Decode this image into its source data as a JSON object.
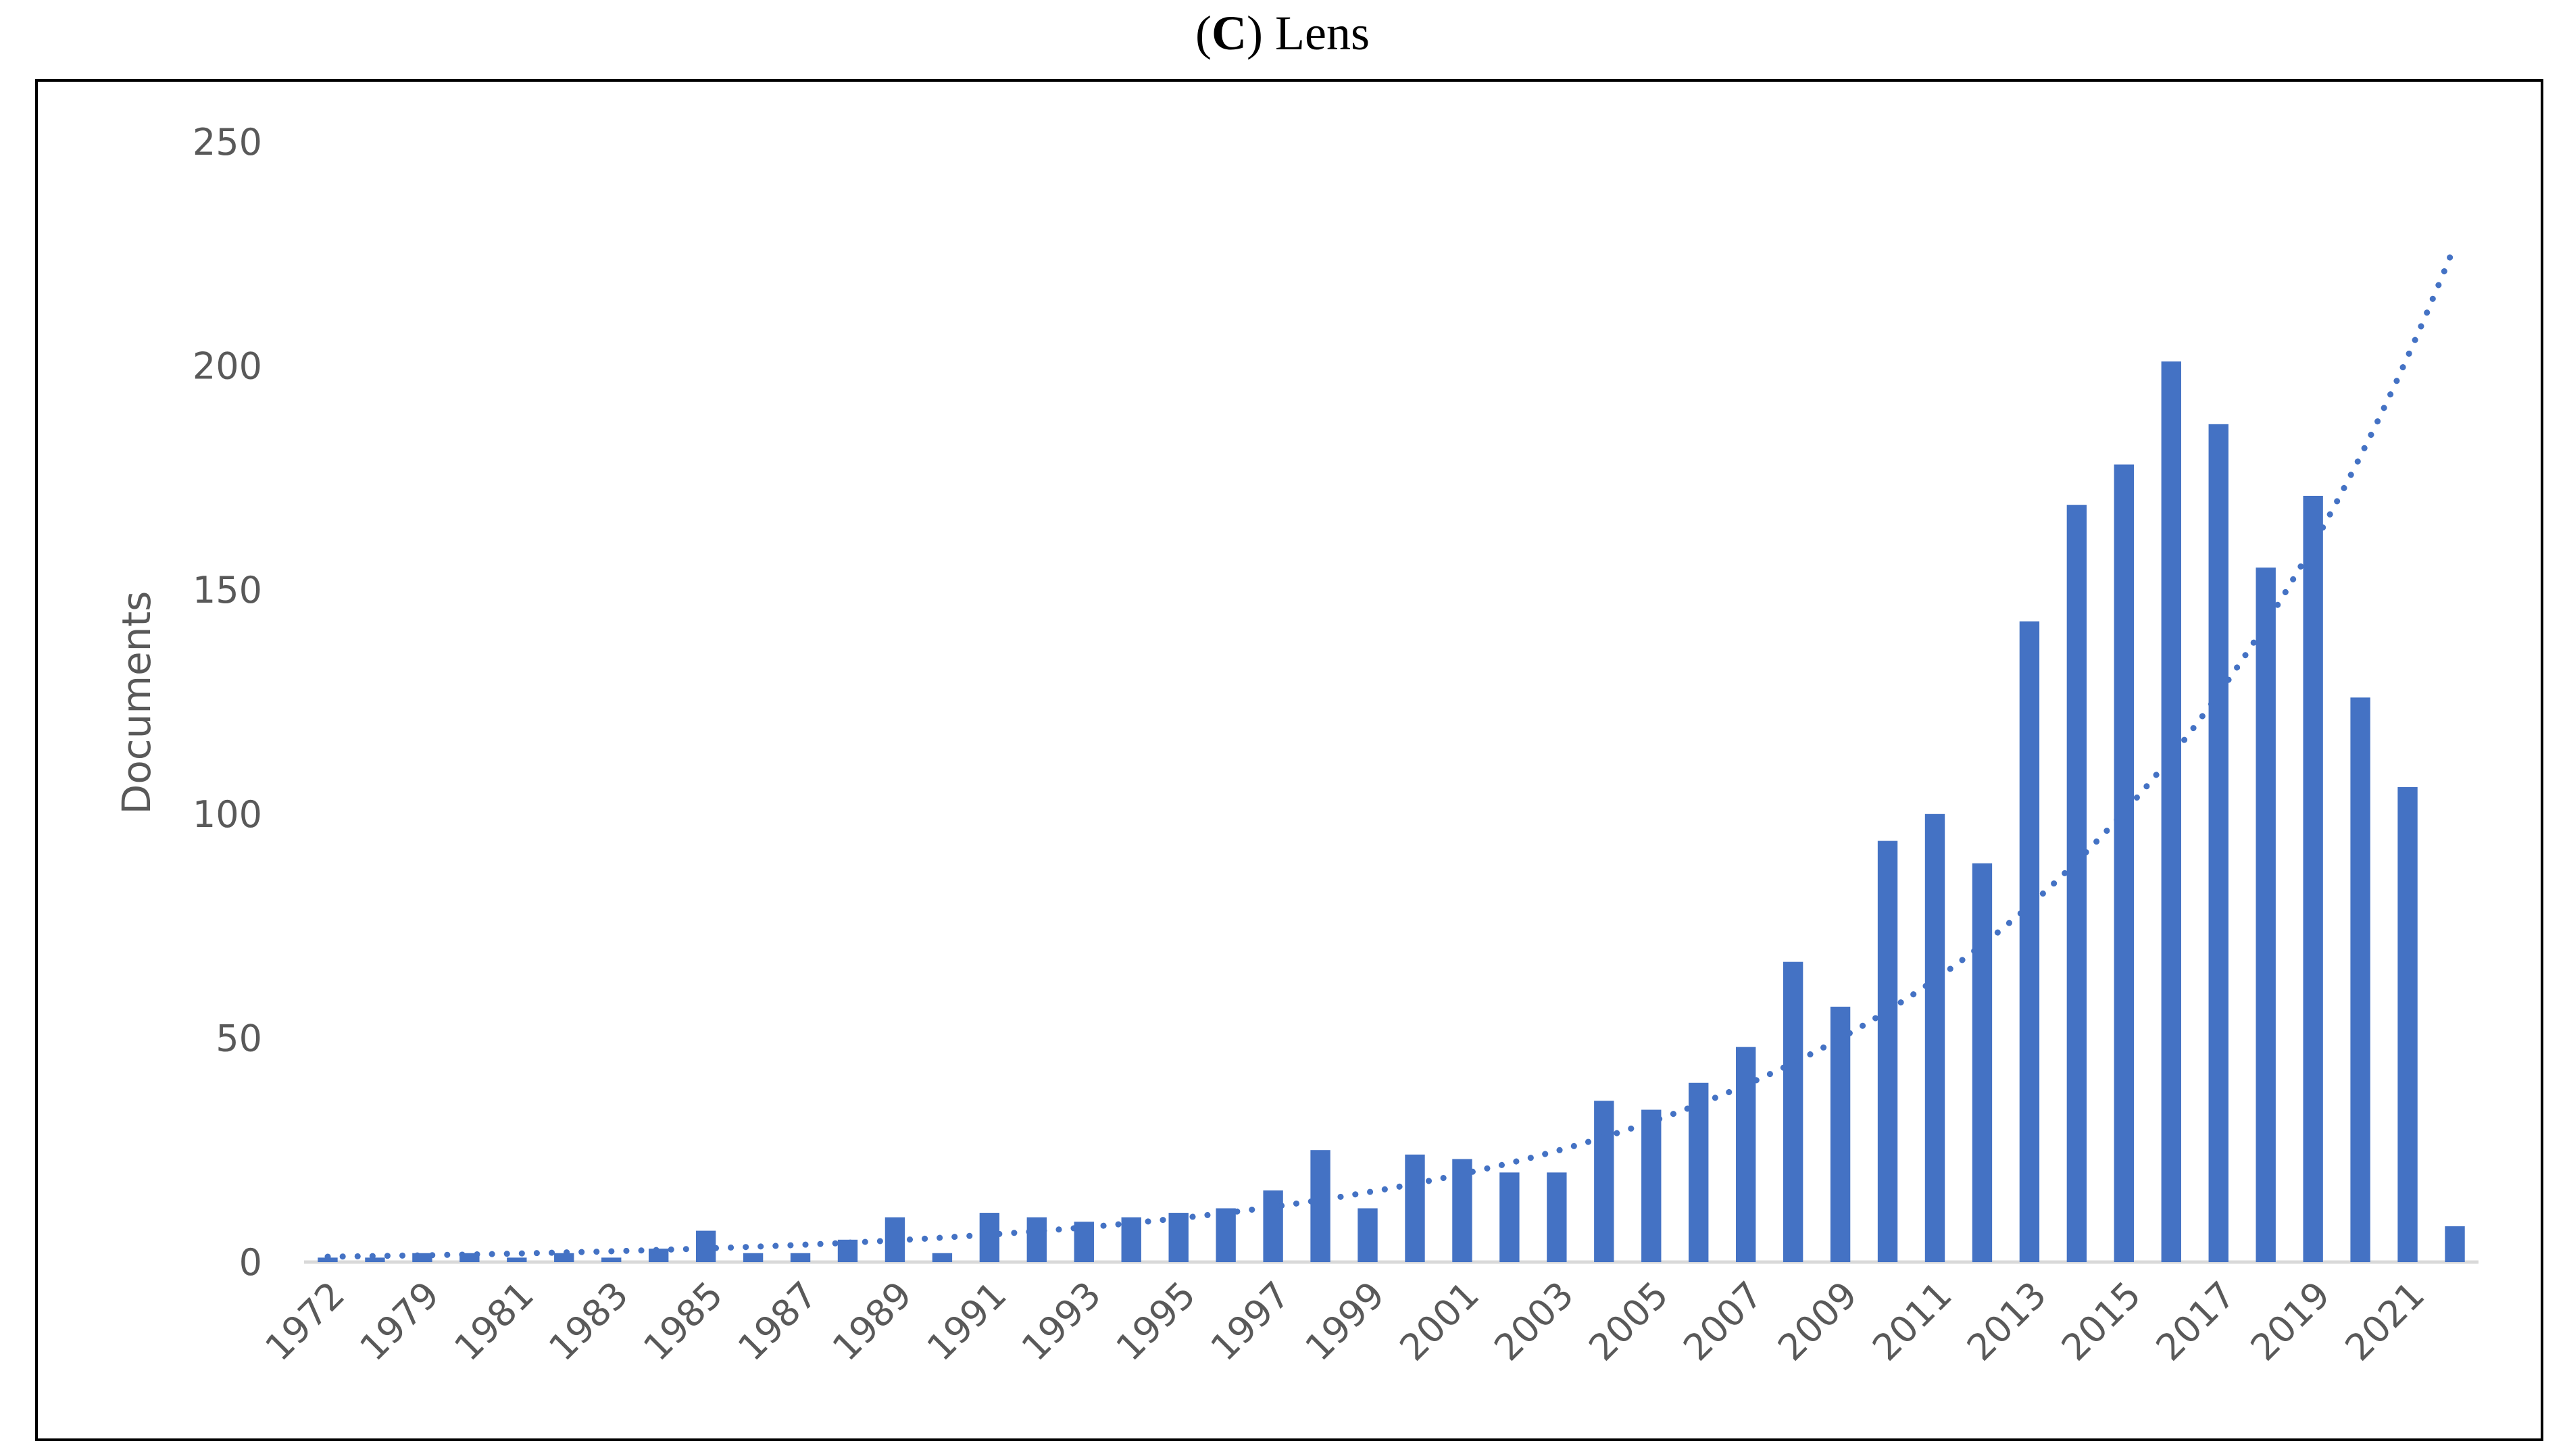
{
  "chart_data": {
    "type": "bar",
    "title_letter": "C",
    "title_text": "Lens",
    "xlabel": "",
    "ylabel": "Documents",
    "ylim": [
      0,
      250
    ],
    "yticks": [
      0,
      50,
      100,
      150,
      200,
      250
    ],
    "grid": false,
    "legend": "none",
    "categories": [
      "1972",
      "1978",
      "1979",
      "1980",
      "1981",
      "1982",
      "1983",
      "1984",
      "1985",
      "1986",
      "1987",
      "1988",
      "1989",
      "1990",
      "1991",
      "1992",
      "1993",
      "1994",
      "1995",
      "1996",
      "1997",
      "1998",
      "1999",
      "2000",
      "2001",
      "2002",
      "2003",
      "2004",
      "2005",
      "2006",
      "2007",
      "2008",
      "2009",
      "2010",
      "2011",
      "2012",
      "2013",
      "2014",
      "2015",
      "2016",
      "2017",
      "2018",
      "2019",
      "2020",
      "2021",
      "2022"
    ],
    "tick_labels": [
      "1972",
      "1979",
      "1981",
      "1983",
      "1985",
      "1987",
      "1989",
      "1991",
      "1993",
      "1995",
      "1997",
      "1999",
      "2001",
      "2003",
      "2005",
      "2007",
      "2009",
      "2011",
      "2013",
      "2015",
      "2017",
      "2019",
      "2021"
    ],
    "values": [
      1,
      1,
      2,
      2,
      1,
      2,
      1,
      3,
      7,
      2,
      2,
      5,
      10,
      2,
      11,
      10,
      9,
      10,
      11,
      12,
      16,
      25,
      12,
      24,
      23,
      20,
      20,
      36,
      34,
      40,
      48,
      67,
      57,
      94,
      100,
      89,
      143,
      169,
      178,
      201,
      187,
      155,
      171,
      126,
      106,
      8
    ],
    "trendline": {
      "type": "exponential",
      "style": "dotted",
      "start": 1.2,
      "end": 227
    },
    "bar_color": "#4472C4"
  }
}
